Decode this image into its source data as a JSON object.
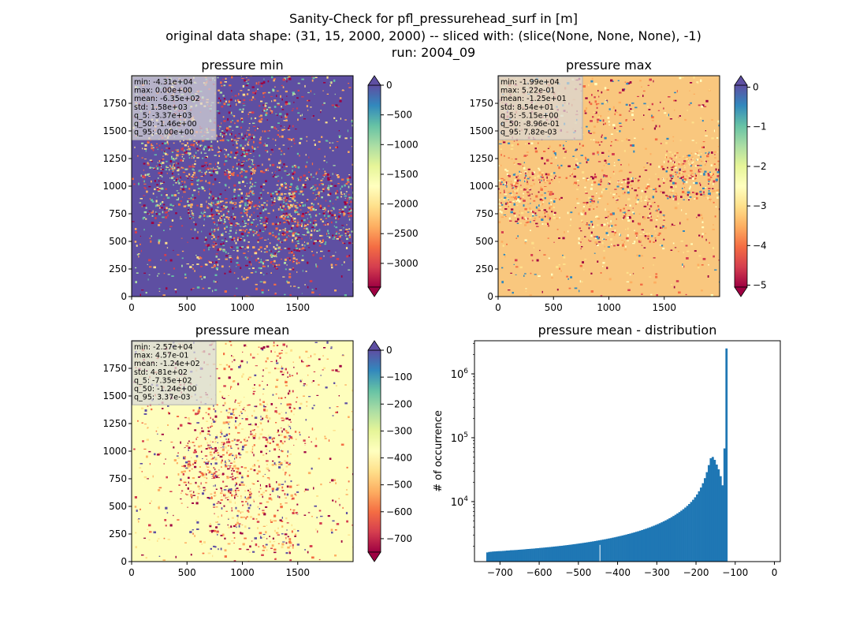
{
  "suptitle": [
    "Sanity-Check for pfl_pressurehead_surf in [m]",
    "original data shape: (31, 15, 2000, 2000) -- sliced with: (slice(None, None, None), -1)",
    "run: 2004_09"
  ],
  "chart_data": [
    {
      "type": "heatmap",
      "title": "pressure min",
      "x_ticks": [
        0,
        500,
        1000,
        1500
      ],
      "y_ticks": [
        0,
        250,
        500,
        750,
        1000,
        1250,
        1500,
        1750
      ],
      "xlim": [
        0,
        2000
      ],
      "ylim": [
        0,
        2000
      ],
      "colormap": "Spectral",
      "colorbar": {
        "range": [
          -3400,
          0
        ],
        "ticks": [
          0,
          -500,
          -1000,
          -1500,
          -2000,
          -2500,
          -3000
        ]
      },
      "stats": [
        "min: -4.31e+04",
        "max: 0.00e+00",
        "mean: -6.35e+02",
        "std: 1.58e+03",
        "q_5: -3.37e+03",
        "q_50: -1.46e+00",
        "q_95: 0.00e+00"
      ],
      "background_color": "#5e4fa2"
    },
    {
      "type": "heatmap",
      "title": "pressure max",
      "x_ticks": [
        0,
        500,
        1000,
        1500
      ],
      "y_ticks": [
        0,
        250,
        500,
        750,
        1000,
        1250,
        1500,
        1750
      ],
      "xlim": [
        0,
        2000
      ],
      "ylim": [
        0,
        2000
      ],
      "colormap": "Spectral",
      "colorbar": {
        "range": [
          -5.05,
          0.05
        ],
        "ticks": [
          0,
          -1,
          -2,
          -3,
          -4,
          -5
        ]
      },
      "stats": [
        "min: -1.99e+04",
        "max: 5.22e-01",
        "mean: -1.25e+01",
        "std: 8.54e+01",
        "q_5: -5.15e+00",
        "q_50: -8.96e-01",
        "q_95: 7.82e-03"
      ],
      "background_color": "#f9c77e"
    },
    {
      "type": "heatmap",
      "title": "pressure mean",
      "x_ticks": [
        0,
        500,
        1000,
        1500
      ],
      "y_ticks": [
        0,
        250,
        500,
        750,
        1000,
        1250,
        1500,
        1750
      ],
      "xlim": [
        0,
        2000
      ],
      "ylim": [
        0,
        2000
      ],
      "colormap": "Spectral",
      "colorbar": {
        "range": [
          -750,
          0
        ],
        "ticks": [
          0,
          -100,
          -200,
          -300,
          -400,
          -500,
          -600,
          -700
        ]
      },
      "stats": [
        "min: -2.57e+04",
        "max: 4.57e-01",
        "mean: -1.24e+02",
        "std: 4.81e+02",
        "q_5: -7.35e+02",
        "q_50: -1.24e+00",
        "q_95: 3.37e-03"
      ],
      "background_color": "#fefebd"
    },
    {
      "type": "bar",
      "title": "pressure mean - distribution",
      "ylabel": "# of occurrence",
      "yscale": "log",
      "x_ticks": [
        -700,
        -600,
        -500,
        -400,
        -300,
        -200,
        -100,
        0
      ],
      "xlim": [
        -765,
        15
      ],
      "ylim": [
        1150,
        3300000
      ],
      "bar_color": "#1f77b4",
      "bins_start": -735,
      "bin_width": 5,
      "values": [
        1601,
        1630,
        1640,
        1654,
        1660,
        1671,
        1677,
        1680,
        1689,
        1697,
        1712,
        1716,
        1732,
        1735,
        1743,
        1749,
        1760,
        1770,
        1779,
        1789,
        1803,
        1812,
        1823,
        1832,
        1842,
        1858,
        1867,
        1883,
        1894,
        1905,
        1921,
        1932,
        1945,
        1959,
        1976,
        1990,
        2005,
        2021,
        2034,
        2053,
        2072,
        2087,
        2108,
        2125,
        2148,
        2166,
        2189,
        2211,
        2233,
        2256,
        2279,
        2305,
        2330,
        2357,
        2383,
        2413,
        2443,
        2473,
        2505,
        2537,
        2570,
        2606,
        2644,
        2680,
        2722,
        2762,
        2806,
        2852,
        2898,
        2948,
        2997,
        3052,
        3110,
        3166,
        3230,
        3292,
        3362,
        3434,
        3510,
        3592,
        3677,
        3768,
        3863,
        3964,
        4076,
        4191,
        4316,
        4448,
        4590,
        4743,
        4908,
        5086,
        5278,
        5485,
        5712,
        5957,
        6228,
        6520,
        6848,
        7210,
        7610,
        8065,
        8578,
        9168,
        9860,
        10686,
        11691,
        12938,
        14527,
        16607,
        19401,
        23285,
        28903,
        37286,
        47830,
        50000,
        45000,
        38000,
        32000,
        25000,
        18000,
        68000,
        2500000
      ],
      "annotations": {
        "gap_bin_x": -445
      }
    }
  ]
}
